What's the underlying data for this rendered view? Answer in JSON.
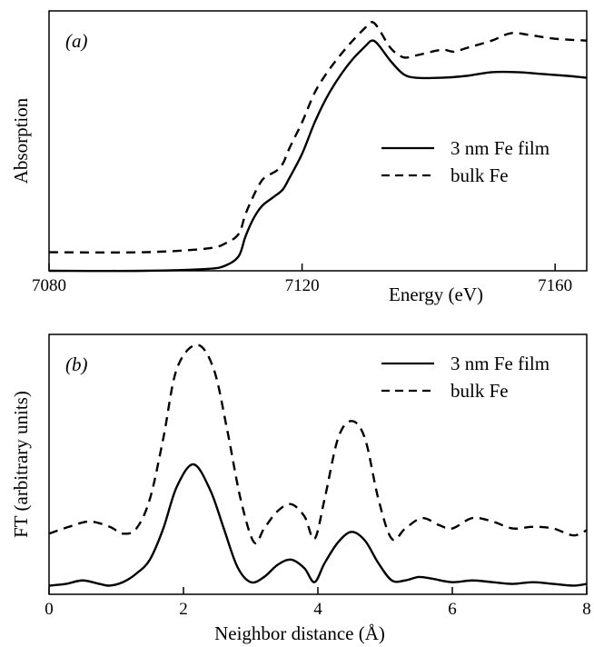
{
  "chart_data": [
    {
      "type": "line",
      "panel_label": "(a)",
      "title": "",
      "xlabel": "Energy (eV)",
      "ylabel": "Absorption",
      "xlim": [
        7080,
        7165
      ],
      "ylim": [
        0,
        1.4
      ],
      "xticks": [
        "7080",
        "7120",
        "7160"
      ],
      "xtick_values": [
        7080,
        7120,
        7160
      ],
      "yticks": [],
      "grid": false,
      "legend_placement": "right",
      "series": [
        {
          "name": "3 nm Fe film",
          "style": "solid",
          "color": "#000000",
          "x": [
            7080,
            7095,
            7105,
            7108,
            7110,
            7111,
            7112,
            7113,
            7114,
            7116,
            7117,
            7118,
            7120,
            7122,
            7124,
            7126,
            7128,
            7130,
            7131,
            7132,
            7134,
            7136,
            7138,
            7142,
            7146,
            7150,
            7154,
            7158,
            7162,
            7165
          ],
          "y": [
            0.0,
            0.0,
            0.01,
            0.03,
            0.08,
            0.18,
            0.26,
            0.32,
            0.36,
            0.41,
            0.44,
            0.5,
            0.63,
            0.8,
            0.94,
            1.05,
            1.14,
            1.21,
            1.24,
            1.22,
            1.13,
            1.06,
            1.04,
            1.04,
            1.05,
            1.07,
            1.07,
            1.06,
            1.05,
            1.04
          ]
        },
        {
          "name": "bulk Fe",
          "style": "dashed",
          "color": "#000000",
          "x": [
            7080,
            7095,
            7105,
            7108,
            7110,
            7111,
            7112,
            7113,
            7114,
            7116,
            7117,
            7118,
            7120,
            7122,
            7124,
            7126,
            7128,
            7130,
            7131,
            7132,
            7134,
            7136,
            7138,
            7142,
            7144,
            7146,
            7150,
            7153,
            7156,
            7160,
            7165
          ],
          "y": [
            0.1,
            0.1,
            0.12,
            0.15,
            0.2,
            0.3,
            0.38,
            0.45,
            0.5,
            0.54,
            0.58,
            0.66,
            0.8,
            0.96,
            1.07,
            1.16,
            1.24,
            1.31,
            1.34,
            1.31,
            1.2,
            1.15,
            1.16,
            1.19,
            1.18,
            1.2,
            1.24,
            1.28,
            1.27,
            1.25,
            1.24
          ]
        }
      ]
    },
    {
      "type": "line",
      "panel_label": "(b)",
      "title": "",
      "xlabel": "Neighbor distance (Å)",
      "ylabel": "FT (arbitrary units)",
      "xlim": [
        0,
        8
      ],
      "ylim": [
        0,
        1.5
      ],
      "xticks": [
        "0",
        "2",
        "4",
        "6",
        "8"
      ],
      "xtick_values": [
        0,
        2,
        4,
        6,
        8
      ],
      "yticks": [],
      "grid": false,
      "legend_placement": "top-right",
      "series": [
        {
          "name": "3 nm Fe film",
          "style": "solid",
          "color": "#000000",
          "x": [
            0,
            0.25,
            0.5,
            0.75,
            0.9,
            1.1,
            1.3,
            1.5,
            1.7,
            1.9,
            2.15,
            2.4,
            2.6,
            2.8,
            3.0,
            3.2,
            3.4,
            3.6,
            3.8,
            3.95,
            4.1,
            4.3,
            4.5,
            4.7,
            4.9,
            5.1,
            5.3,
            5.5,
            5.7,
            6.0,
            6.3,
            6.6,
            6.9,
            7.2,
            7.5,
            7.8,
            8.0
          ],
          "y": [
            0.05,
            0.06,
            0.08,
            0.06,
            0.05,
            0.07,
            0.12,
            0.2,
            0.38,
            0.62,
            0.75,
            0.6,
            0.38,
            0.16,
            0.07,
            0.1,
            0.17,
            0.2,
            0.15,
            0.07,
            0.18,
            0.3,
            0.36,
            0.31,
            0.18,
            0.08,
            0.08,
            0.1,
            0.09,
            0.07,
            0.08,
            0.07,
            0.06,
            0.07,
            0.06,
            0.05,
            0.06
          ]
        },
        {
          "name": "bulk Fe",
          "style": "dashed",
          "color": "#000000",
          "x": [
            0,
            0.3,
            0.6,
            0.9,
            1.1,
            1.3,
            1.5,
            1.7,
            1.9,
            2.2,
            2.45,
            2.65,
            2.85,
            3.05,
            3.2,
            3.4,
            3.6,
            3.8,
            3.95,
            4.1,
            4.3,
            4.5,
            4.7,
            4.9,
            5.1,
            5.3,
            5.55,
            5.8,
            6.0,
            6.3,
            6.6,
            6.9,
            7.2,
            7.5,
            7.8,
            8.0
          ],
          "y": [
            0.35,
            0.39,
            0.42,
            0.39,
            0.35,
            0.38,
            0.55,
            0.9,
            1.3,
            1.44,
            1.3,
            0.95,
            0.55,
            0.3,
            0.38,
            0.48,
            0.52,
            0.45,
            0.32,
            0.55,
            0.9,
            1.0,
            0.9,
            0.55,
            0.32,
            0.38,
            0.44,
            0.4,
            0.38,
            0.44,
            0.42,
            0.38,
            0.39,
            0.38,
            0.34,
            0.37
          ]
        }
      ]
    }
  ]
}
